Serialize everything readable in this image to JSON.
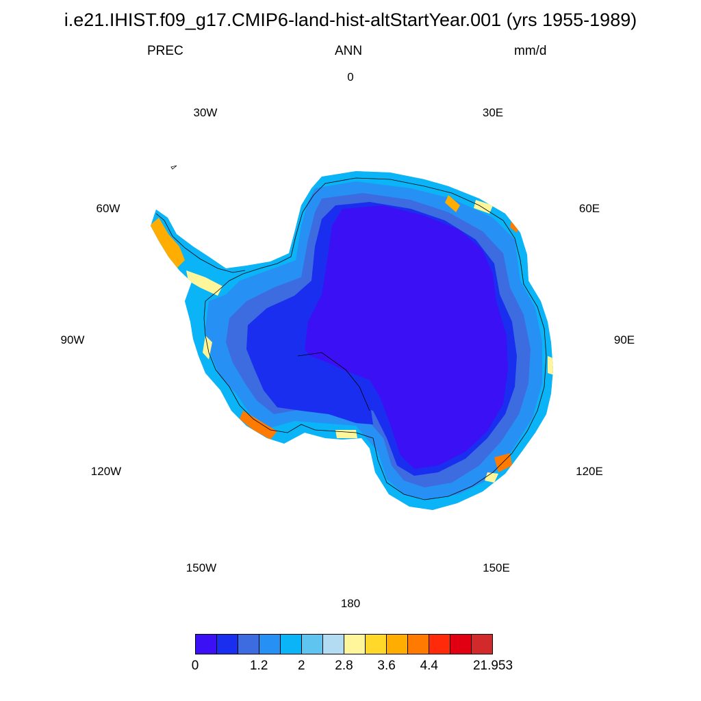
{
  "title": "i.e21.IHIST.f09_g17.CMIP6-land-hist-altStartYear.001 (yrs 1955-1989)",
  "subtitle": {
    "left": "PREC",
    "center": "ANN",
    "right": "mm/d"
  },
  "longitude_labels": [
    "0",
    "30E",
    "60E",
    "90E",
    "120E",
    "150E",
    "180",
    "150W",
    "120W",
    "90W",
    "60W",
    "30W"
  ],
  "colorbar": {
    "colors": [
      "#3b10f5",
      "#1a2ef0",
      "#3d6be0",
      "#2790f5",
      "#0bb3f7",
      "#5fc4f0",
      "#b3dcf2",
      "#fff59a",
      "#ffd829",
      "#ffad00",
      "#ff7a00",
      "#ff2a0a",
      "#e00012",
      "#d22a2a"
    ],
    "labels": [
      "0",
      "1.2",
      "2",
      "2.8",
      "3.6",
      "4.4",
      "21.953"
    ],
    "label_boundaries": [
      0,
      3,
      5,
      7,
      9,
      11,
      14
    ]
  },
  "map_data": {
    "projection": "south-polar-stereographic",
    "variable": "PREC",
    "units": "mm/d",
    "continent": "Antarctica"
  }
}
